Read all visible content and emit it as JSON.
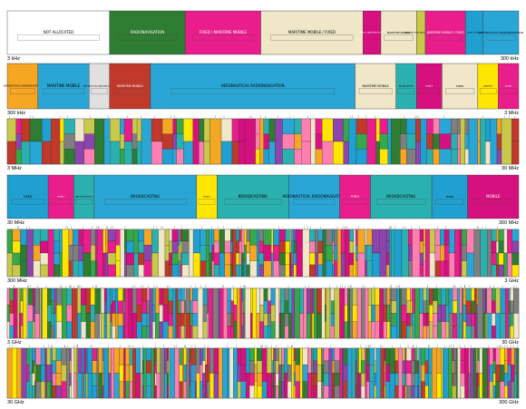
{
  "chart_data": {
    "type": "bar",
    "description_of_axis": "frequency",
    "legend_colors": {
      "maritime_mobile": "#e91e8c",
      "mobile": "#d6107e",
      "fixed": "#f0e6c8",
      "radionavigation": "#2aa6d6",
      "aeronautical_radionavigation": "#1fa0d0",
      "broadcasting": "#2bb0b0",
      "amateur": "#ffe600",
      "radiolocation": "#35a84a",
      "aeronautical_mobile": "#f5a623",
      "satellite": "#8e44ad",
      "space_research": "#c0392b",
      "mobile_satellite": "#ff7fb0",
      "standard_frequency": "#7f7f7f",
      "not_allocated": "#ffffff",
      "green_dark": "#2e7d32",
      "olive": "#c8c84a"
    },
    "band_edges": [
      {
        "left": "3 kHz",
        "right": "300 kHz"
      },
      {
        "left": "300 kHz",
        "right": "3 MHz"
      },
      {
        "left": "3 MHz",
        "right": "30 MHz"
      },
      {
        "left": "30 MHz",
        "right": "300 MHz"
      },
      {
        "left": "300 MHz",
        "right": "3 GHz"
      },
      {
        "left": "3 GHz",
        "right": "30 GHz"
      },
      {
        "left": "30 GHz",
        "right": "300 GHz"
      }
    ],
    "row1_segments": [
      {
        "label": "NOT ALLOCATED",
        "color": "#ffffff",
        "w": 23
      },
      {
        "label": "RADIONAVIGATION",
        "color": "#2e7d32",
        "w": 17
      },
      {
        "label": "FIXED / MARITIME MOBILE",
        "color": "#e91e8c",
        "w": 17
      },
      {
        "label": "MARITIME MOBILE / FIXED",
        "color": "#f0e6c8",
        "w": 23
      },
      {
        "label": "FIXED / MARITIME MOBILE",
        "color": "#d6107e",
        "w": 4
      },
      {
        "label": "MARITIME MOBILE",
        "color": "#f0e6c8",
        "w": 8
      },
      {
        "label": "AERONAUTICAL RADIONAVIGATION",
        "color": "#c8c84a",
        "w": 2
      },
      {
        "label": "MARITIME MOBILE / FIXED",
        "color": "#e91e8c",
        "w": 9
      },
      {
        "label": "FIXED / MOBILE",
        "color": "#1fa0d0",
        "w": 4
      },
      {
        "label": "AERONAUTICAL RADIONAVIGATION",
        "color": "#2aa6d6",
        "w": 8
      }
    ],
    "row2_segments": [
      {
        "label": "AERONAUTICAL RADIONAVIGATION",
        "color": "#f5a623",
        "w": 6
      },
      {
        "label": "MARITIME MOBILE",
        "color": "#2aa6d6",
        "w": 10
      },
      {
        "label": "AERONAUTICAL RADIONAVIGATION",
        "color": "#e0e0e0",
        "w": 4
      },
      {
        "label": "MARITIME MOBILE",
        "color": "#c0392b",
        "w": 8
      },
      {
        "label": "AERONAUTICAL RADIONAVIGATION",
        "color": "#2aa6d6",
        "w": 40
      },
      {
        "label": "MARITIME MOBILE",
        "color": "#f0e6c8",
        "w": 8
      },
      {
        "label": "BROADCASTING",
        "color": "#2bb0b0",
        "w": 4
      },
      {
        "label": "MOBILE",
        "color": "#d6107e",
        "w": 5
      },
      {
        "label": "FIXED",
        "color": "#f0e6c8",
        "w": 7
      },
      {
        "label": "AMATEUR",
        "color": "#ffe600",
        "w": 4
      },
      {
        "label": "MOBILE",
        "color": "#e91e8c",
        "w": 4
      }
    ],
    "row4_segments": [
      {
        "label": "FIXED",
        "color": "#1fa0d0",
        "w": 8
      },
      {
        "label": "MOBILE",
        "color": "#e91e8c",
        "w": 5
      },
      {
        "label": "RADIOASTRONOMY",
        "color": "#2bb0b0",
        "w": 4
      },
      {
        "label": "BROADCASTING",
        "color": "#2aa6d6",
        "w": 20
      },
      {
        "label": "MOBILE",
        "color": "#ffe600",
        "w": 4
      },
      {
        "label": "BROADCASTING",
        "color": "#2bb0b0",
        "w": 14
      },
      {
        "label": "AERONAUTICAL RADIONAVIGATION",
        "color": "#2aa6d6",
        "w": 10
      },
      {
        "label": "MOBILE",
        "color": "#e91e8c",
        "w": 6
      },
      {
        "label": "BROADCASTING",
        "color": "#2bb0b0",
        "w": 12
      },
      {
        "label": "FIXED",
        "color": "#1fa0d0",
        "w": 7
      },
      {
        "label": "MOBILE",
        "color": "#d6107e",
        "w": 10
      }
    ]
  }
}
